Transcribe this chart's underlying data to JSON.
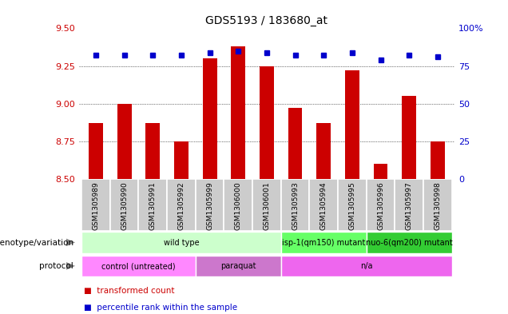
{
  "title": "GDS5193 / 183680_at",
  "samples": [
    "GSM1305989",
    "GSM1305990",
    "GSM1305991",
    "GSM1305992",
    "GSM1305999",
    "GSM1306000",
    "GSM1306001",
    "GSM1305993",
    "GSM1305994",
    "GSM1305995",
    "GSM1305996",
    "GSM1305997",
    "GSM1305998"
  ],
  "transformed_count": [
    8.87,
    9.0,
    8.87,
    8.75,
    9.3,
    9.38,
    9.25,
    8.97,
    8.87,
    9.22,
    8.6,
    9.05,
    8.75
  ],
  "percentile_rank": [
    82,
    82,
    82,
    82,
    84,
    85,
    84,
    82,
    82,
    84,
    79,
    82,
    81
  ],
  "ylim_left": [
    8.5,
    9.5
  ],
  "ylim_right": [
    0,
    100
  ],
  "yticks_left": [
    8.5,
    8.75,
    9.0,
    9.25,
    9.5
  ],
  "yticks_right": [
    0,
    25,
    50,
    75,
    100
  ],
  "grid_values": [
    8.75,
    9.0,
    9.25
  ],
  "bar_color": "#cc0000",
  "dot_color": "#0000cc",
  "bar_width": 0.5,
  "genotype_groups": [
    {
      "label": "wild type",
      "start": 0,
      "end": 7,
      "color": "#ccffcc"
    },
    {
      "label": "isp-1(qm150) mutant",
      "start": 7,
      "end": 10,
      "color": "#66ff66"
    },
    {
      "label": "nuo-6(qm200) mutant",
      "start": 10,
      "end": 13,
      "color": "#33cc33"
    }
  ],
  "protocol_groups": [
    {
      "label": "control (untreated)",
      "start": 0,
      "end": 4,
      "color": "#ff88ff"
    },
    {
      "label": "paraquat",
      "start": 4,
      "end": 7,
      "color": "#cc77cc"
    },
    {
      "label": "n/a",
      "start": 7,
      "end": 13,
      "color": "#ee66ee"
    }
  ],
  "legend_items": [
    {
      "label": "transformed count",
      "color": "#cc0000"
    },
    {
      "label": "percentile rank within the sample",
      "color": "#0000cc"
    }
  ],
  "label_color_left": "#cc0000",
  "label_color_right": "#0000cc",
  "background_color": "#ffffff",
  "sample_bg_color": "#cccccc"
}
